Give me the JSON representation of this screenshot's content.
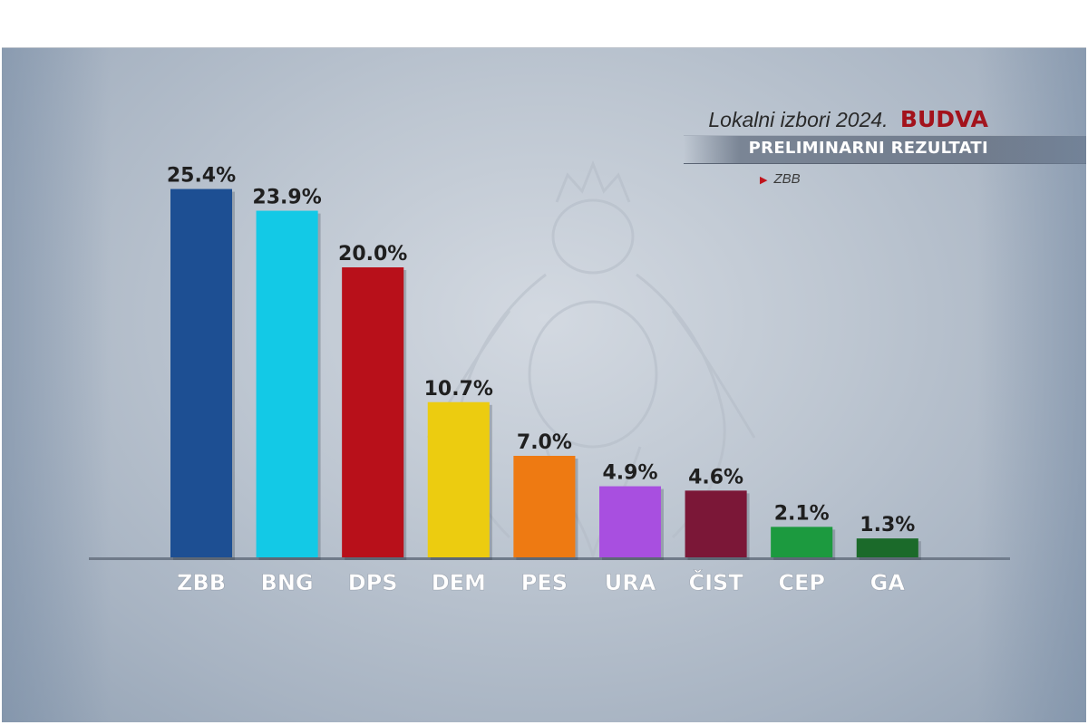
{
  "header": {
    "subtitle": "Lokalni izbori 2024.",
    "city": "BUDVA",
    "band": "PRELIMINARNI REZULTATI",
    "legend_marker": "ZBB"
  },
  "chart_data": {
    "type": "bar",
    "title": "",
    "xlabel": "",
    "ylabel": "",
    "ylim": [
      0,
      27
    ],
    "grid": false,
    "categories": [
      "ZBB",
      "BNG",
      "DPS",
      "DEM",
      "PES",
      "URA",
      "ČIST",
      "CEP",
      "GA"
    ],
    "values": [
      25.4,
      23.9,
      20.0,
      10.7,
      7.0,
      4.9,
      4.6,
      2.1,
      1.3
    ],
    "value_labels": [
      "25.4%",
      "23.9%",
      "20.0%",
      "10.7%",
      "7.0%",
      "4.9%",
      "4.6%",
      "2.1%",
      "1.3%"
    ],
    "colors": [
      "#1d4f93",
      "#13c9e6",
      "#b8101a",
      "#eccc10",
      "#ee7a12",
      "#a84fe0",
      "#7b1737",
      "#1c9a3f",
      "#1b6a2a"
    ]
  }
}
